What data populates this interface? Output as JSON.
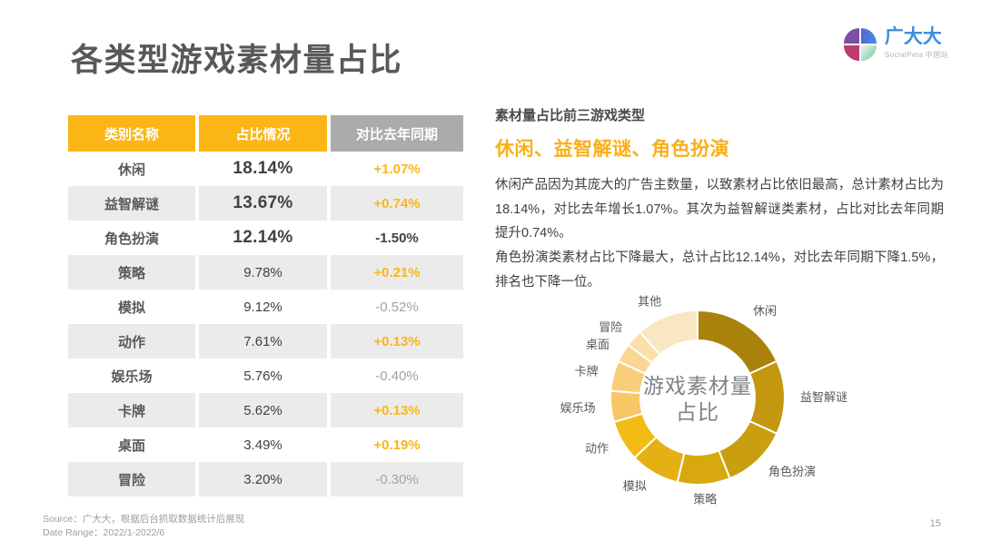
{
  "page": {
    "title": "各类型游戏素材量占比"
  },
  "logo": {
    "brand": "广大大",
    "subtitle": "SocialPeta 中国站"
  },
  "colors": {
    "accent_yellow": "#FBB616",
    "heading_orange": "#FBAF17",
    "header_gray": "#ABABAB",
    "row_alt_gray": "#EBEBEB",
    "text_dark": "#414042",
    "muted_gray": "#A3A3A5"
  },
  "table": {
    "headers": [
      "类别名称",
      "占比情况",
      "对比去年同期"
    ],
    "rows": [
      {
        "category": "休闲",
        "share": "18.14%",
        "change": "+1.07%",
        "tone": "accent",
        "top3": true
      },
      {
        "category": "益智解谜",
        "share": "13.67%",
        "change": "+0.74%",
        "tone": "accent",
        "top3": true
      },
      {
        "category": "角色扮演",
        "share": "12.14%",
        "change": "-1.50%",
        "tone": "strong",
        "top3": true
      },
      {
        "category": "策略",
        "share": "9.78%",
        "change": "+0.21%",
        "tone": "accent",
        "top3": false
      },
      {
        "category": "模拟",
        "share": "9.12%",
        "change": "-0.52%",
        "tone": "muted",
        "top3": false
      },
      {
        "category": "动作",
        "share": "7.61%",
        "change": "+0.13%",
        "tone": "accent",
        "top3": false
      },
      {
        "category": "娱乐场",
        "share": "5.76%",
        "change": "-0.40%",
        "tone": "muted",
        "top3": false
      },
      {
        "category": "卡牌",
        "share": "5.62%",
        "change": "+0.13%",
        "tone": "accent",
        "top3": false
      },
      {
        "category": "桌面",
        "share": "3.49%",
        "change": "+0.19%",
        "tone": "accent",
        "top3": false
      },
      {
        "category": "冒险",
        "share": "3.20%",
        "change": "-0.30%",
        "tone": "muted",
        "top3": false
      }
    ]
  },
  "insight": {
    "label": "素材量占比前三游戏类型",
    "highlight": "休闲、益智解谜、角色扮演",
    "p1": "休闲产品因为其庞大的广告主数量，以致素材占比依旧最高，总计素材占比为18.14%，对比去年增长1.07%。其次为益智解谜类素材，占比对比去年同期提升0.74%。",
    "p2": "角色扮演类素材占比下降最大，总计占比12.14%，对比去年同期下降1.5%，排名也下降一位。"
  },
  "chart_data": {
    "type": "pie",
    "subtype": "donut",
    "title": "游戏素材量占比",
    "center_label_lines": [
      "游戏素材量",
      "占比"
    ],
    "unit": "%",
    "start_angle": "top",
    "direction": "clockwise",
    "categories": [
      "休闲",
      "益智解谜",
      "角色扮演",
      "策略",
      "模拟",
      "动作",
      "娱乐场",
      "卡牌",
      "桌面",
      "冒险",
      "其他"
    ],
    "values": [
      18.14,
      13.67,
      12.14,
      9.78,
      9.12,
      7.61,
      5.76,
      5.62,
      3.49,
      3.2,
      11.47
    ],
    "colors": [
      "#A9820B",
      "#C3970F",
      "#C99E10",
      "#D7A90E",
      "#E5B013",
      "#F3BB14",
      "#F7C765",
      "#F8CE7B",
      "#F9D693",
      "#FADFA8",
      "#FAE6C2"
    ]
  },
  "footer": {
    "source": "Source：广大大，根据后台抓取数据统计后展现",
    "date_range": "Date Range：2022/1-2022/6",
    "page_number": "15"
  }
}
